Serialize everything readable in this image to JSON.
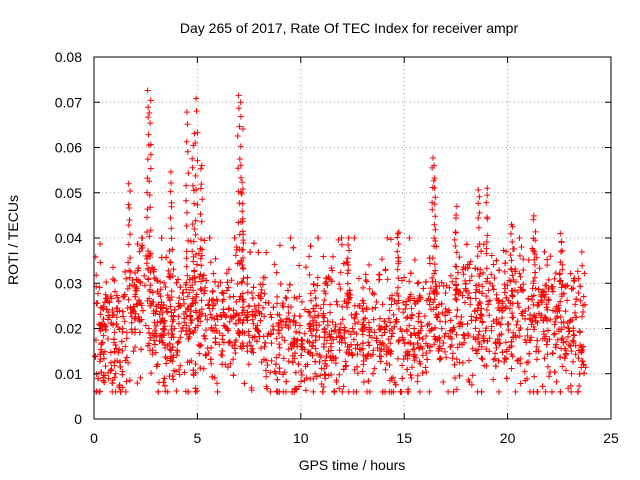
{
  "chart_data": {
    "type": "scatter",
    "title": "Day 265 of 2017, Rate Of TEC Index for receiver ampr",
    "xlabel": "GPS time / hours",
    "ylabel": "ROTI / TECUs",
    "xlim": [
      0,
      25
    ],
    "ylim": [
      0,
      0.08
    ],
    "xticks": [
      0,
      5,
      10,
      15,
      20,
      25
    ],
    "xtick_labels": [
      "0",
      "5",
      "10",
      "15",
      "20",
      "25"
    ],
    "yticks": [
      0,
      0.01,
      0.02,
      0.03,
      0.04,
      0.05,
      0.06,
      0.07,
      0.08
    ],
    "ytick_labels": [
      "0",
      "0.01",
      "0.02",
      "0.03",
      "0.04",
      "0.05",
      "0.06",
      "0.07",
      "0.08"
    ],
    "grid": true,
    "marker": "+",
    "color": "#ff0000",
    "series": [
      {
        "name": "ROTI",
        "baseline": [
          [
            0.0,
            0.018
          ],
          [
            0.5,
            0.016
          ],
          [
            1.0,
            0.019
          ],
          [
            1.5,
            0.018
          ],
          [
            2.0,
            0.025
          ],
          [
            2.5,
            0.027
          ],
          [
            3.0,
            0.022
          ],
          [
            4.0,
            0.021
          ],
          [
            5.0,
            0.022
          ],
          [
            6.0,
            0.021
          ],
          [
            7.0,
            0.022
          ],
          [
            8.0,
            0.02
          ],
          [
            9.0,
            0.019
          ],
          [
            10.0,
            0.018
          ],
          [
            11.0,
            0.018
          ],
          [
            12.0,
            0.019
          ],
          [
            13.0,
            0.018
          ],
          [
            14.0,
            0.018
          ],
          [
            15.0,
            0.019
          ],
          [
            16.0,
            0.02
          ],
          [
            17.0,
            0.021
          ],
          [
            18.0,
            0.022
          ],
          [
            19.0,
            0.021
          ],
          [
            20.0,
            0.021
          ],
          [
            21.0,
            0.021
          ],
          [
            22.0,
            0.021
          ],
          [
            23.0,
            0.02
          ],
          [
            23.5,
            0.018
          ],
          [
            23.8,
            0.016
          ]
        ],
        "spikes": [
          {
            "x": 1.7,
            "ymax": 0.052
          },
          {
            "x": 2.6,
            "ymax": 0.073
          },
          {
            "x": 2.7,
            "ymax": 0.071
          },
          {
            "x": 3.7,
            "ymax": 0.055
          },
          {
            "x": 4.5,
            "ymax": 0.068
          },
          {
            "x": 4.8,
            "ymax": 0.064
          },
          {
            "x": 4.95,
            "ymax": 0.071
          },
          {
            "x": 5.2,
            "ymax": 0.057
          },
          {
            "x": 7.0,
            "ymax": 0.072
          },
          {
            "x": 7.15,
            "ymax": 0.07
          },
          {
            "x": 7.2,
            "ymax": 0.053
          },
          {
            "x": 12.3,
            "ymax": 0.04
          },
          {
            "x": 14.7,
            "ymax": 0.042
          },
          {
            "x": 16.4,
            "ymax": 0.058
          },
          {
            "x": 16.5,
            "ymax": 0.056
          },
          {
            "x": 17.5,
            "ymax": 0.047
          },
          {
            "x": 18.6,
            "ymax": 0.051
          },
          {
            "x": 19.0,
            "ymax": 0.051
          },
          {
            "x": 20.2,
            "ymax": 0.043
          },
          {
            "x": 21.3,
            "ymax": 0.045
          },
          {
            "x": 22.6,
            "ymax": 0.041
          }
        ]
      }
    ]
  }
}
